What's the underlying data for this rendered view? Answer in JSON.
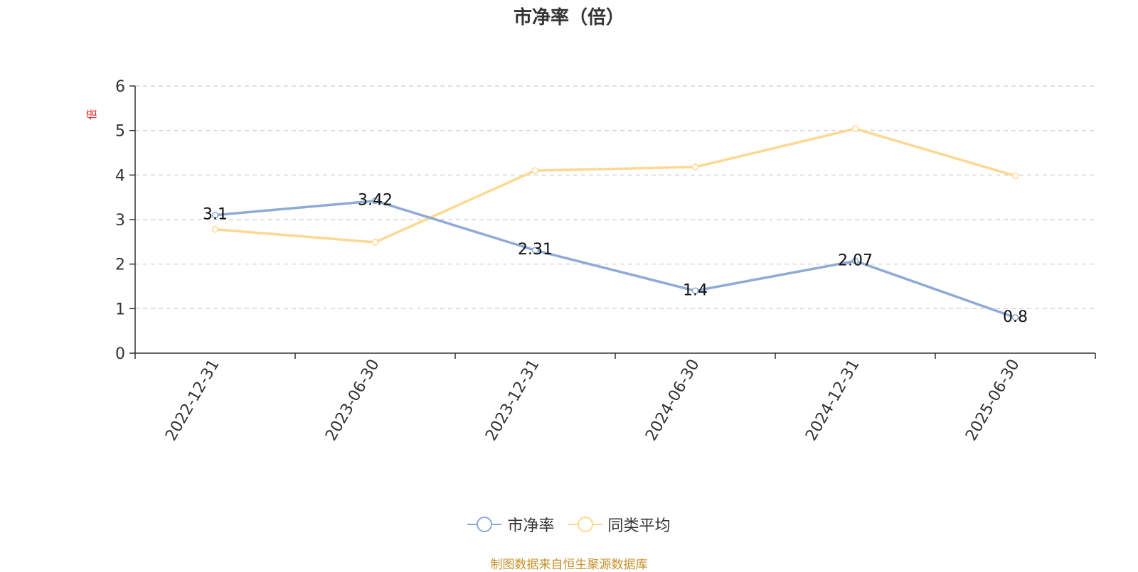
{
  "chart_data": {
    "type": "line",
    "title": "市净率（倍）",
    "ylabel": "倍",
    "ylim": [
      0,
      6
    ],
    "yticks": [
      0,
      1,
      2,
      3,
      4,
      5,
      6
    ],
    "categories": [
      "2022-12-31",
      "2023-06-30",
      "2023-12-31",
      "2024-06-30",
      "2024-12-31",
      "2025-06-30"
    ],
    "series": [
      {
        "name": "市净率",
        "values": [
          3.1,
          3.42,
          2.31,
          1.4,
          2.07,
          0.8
        ],
        "color": "#8eaad6",
        "data_labels": true
      },
      {
        "name": "同类平均",
        "values": [
          2.78,
          2.49,
          4.1,
          4.18,
          5.04,
          3.98
        ],
        "color": "#fcd892",
        "data_labels": false
      }
    ],
    "grid": true,
    "legend_position": "bottom-center",
    "source_note": "制图数据来自恒生聚源数据库"
  },
  "colors": {
    "axis": "#333333",
    "grid": "#cccccc",
    "ylabel": "#e02020",
    "source": "#c8902a"
  }
}
